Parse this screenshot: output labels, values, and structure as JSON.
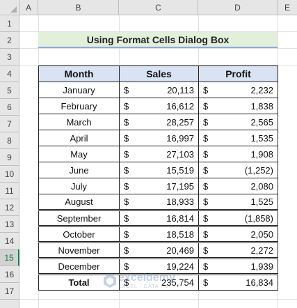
{
  "columns": [
    "A",
    "B",
    "C",
    "D",
    "E"
  ],
  "rows": [
    "1",
    "2",
    "3",
    "4",
    "5",
    "6",
    "7",
    "8",
    "9",
    "10",
    "11",
    "12",
    "13",
    "14",
    "15",
    "16",
    "17"
  ],
  "selected_row": "15",
  "title": "Using Format Cells Dialog Box",
  "table": {
    "headers": [
      "Month",
      "Sales",
      "Profit"
    ],
    "currency": "$",
    "data": [
      {
        "month": "January",
        "sales": "20,113",
        "profit": "2,232"
      },
      {
        "month": "February",
        "sales": "16,612",
        "profit": "1,838"
      },
      {
        "month": "March",
        "sales": "28,257",
        "profit": "2,565"
      },
      {
        "month": "April",
        "sales": "16,997",
        "profit": "1,535"
      },
      {
        "month": "May",
        "sales": "27,103",
        "profit": "1,908"
      },
      {
        "month": "June",
        "sales": "15,519",
        "profit": "(1,252)"
      },
      {
        "month": "July",
        "sales": "17,195",
        "profit": "2,080"
      },
      {
        "month": "August",
        "sales": "18,933",
        "profit": "1,525"
      },
      {
        "month": "September",
        "sales": "16,814",
        "profit": "(1,858)"
      },
      {
        "month": "October",
        "sales": "18,518",
        "profit": "2,050"
      },
      {
        "month": "November",
        "sales": "20,469",
        "profit": "2,272"
      },
      {
        "month": "December",
        "sales": "19,224",
        "profit": "1,939"
      }
    ],
    "total": {
      "label": "Total",
      "sales": "235,754",
      "profit": "16,834"
    }
  },
  "watermark": {
    "brand": "exceldemy",
    "tag": "EXCEL · DATA · BI"
  },
  "colors": {
    "title_fill": "#e2efda",
    "header_fill": "#dae3f3",
    "title_underline": "#8ea9db",
    "select_accent": "#217346"
  }
}
